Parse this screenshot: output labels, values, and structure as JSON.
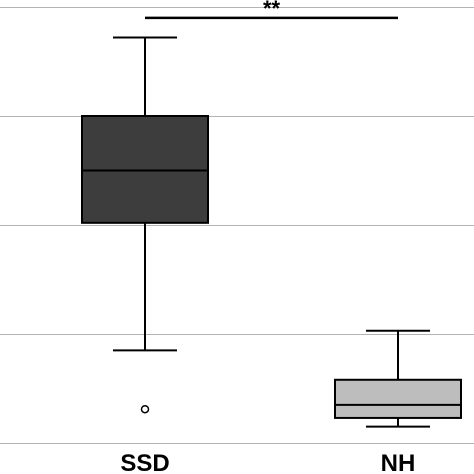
{
  "chart_data": {
    "type": "box",
    "title": "",
    "xlabel": "",
    "ylabel": "",
    "categories": [
      "SSD",
      "NH"
    ],
    "ylim": [
      0,
      4
    ],
    "gridlines": [
      0,
      1,
      2,
      3,
      4
    ],
    "grid": true,
    "boxes": [
      {
        "category": "SSD",
        "whisker_low": 0.85,
        "q1": 2.02,
        "median": 2.5,
        "q3": 3.0,
        "whisker_high": 3.72,
        "outliers": [
          0.31
        ],
        "fill": "#3d3d3d"
      },
      {
        "category": "NH",
        "whisker_low": 0.15,
        "q1": 0.23,
        "median": 0.35,
        "q3": 0.58,
        "whisker_high": 1.03,
        "outliers": [],
        "fill": "#bdbdbd"
      }
    ],
    "significance": {
      "from": "SSD",
      "to": "NH",
      "label": "**",
      "y": 3.9
    }
  }
}
